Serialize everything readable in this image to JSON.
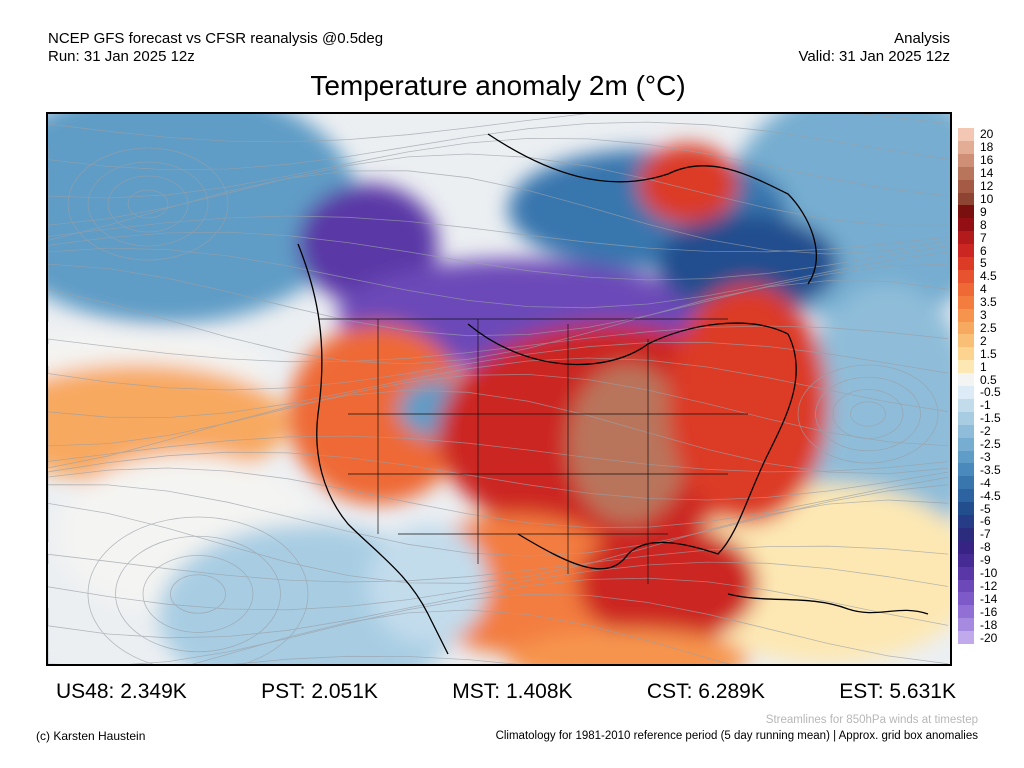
{
  "header": {
    "left_line1": "NCEP GFS forecast vs CFSR reanalysis @0.5deg",
    "left_line2": "Run: 31 Jan 2025 12z",
    "right_line1": "Analysis",
    "right_line2": "Valid: 31 Jan 2025 12z"
  },
  "title": "Temperature anomaly 2m (°C)",
  "colorbar": {
    "labels": [
      "20",
      "18",
      "16",
      "14",
      "12",
      "10",
      "9",
      "8",
      "7",
      "6",
      "5",
      "4.5",
      "4",
      "3.5",
      "3",
      "2.5",
      "2",
      "1.5",
      "1",
      "0.5",
      "-0.5",
      "-1",
      "-1.5",
      "-2",
      "-2.5",
      "-3",
      "-3.5",
      "-4",
      "-4.5",
      "-5",
      "-6",
      "-7",
      "-8",
      "-9",
      "-10",
      "-12",
      "-14",
      "-16",
      "-18",
      "-20"
    ],
    "colors": [
      "#f3c7b4",
      "#e3ac94",
      "#cf8f76",
      "#b9745c",
      "#a45a45",
      "#8e4433",
      "#7a0f10",
      "#940f14",
      "#b31a1c",
      "#cc2622",
      "#dc3b26",
      "#e6532e",
      "#ee6936",
      "#f37d3f",
      "#f6944e",
      "#f8a960",
      "#fabf76",
      "#fcd38f",
      "#fde8b3",
      "#f4f4f2",
      "#dcebf5",
      "#c2dcec",
      "#a8cde3",
      "#8fbdd9",
      "#76add0",
      "#5f9cc6",
      "#4a89bb",
      "#3976ae",
      "#2c63a0",
      "#234e8e",
      "#263c86",
      "#2c2c7f",
      "#372384",
      "#472b95",
      "#5a37a6",
      "#6c48b8",
      "#7e5ac8",
      "#9170d5",
      "#a68ae0",
      "#c0aaeb"
    ]
  },
  "stats": [
    {
      "region": "US48",
      "value": "2.349K"
    },
    {
      "region": "PST",
      "value": "2.051K"
    },
    {
      "region": "MST",
      "value": "1.408K"
    },
    {
      "region": "CST",
      "value": "6.289K"
    },
    {
      "region": "EST",
      "value": "5.631K"
    }
  ],
  "footer": {
    "copyright": "(c) Karsten Haustein",
    "streamline_note": "Streamlines for 850hPa winds at timestep",
    "climatology_note": "Climatology for 1981-2010 reference period (5 day running mean) | Approx. grid box anomalies"
  }
}
